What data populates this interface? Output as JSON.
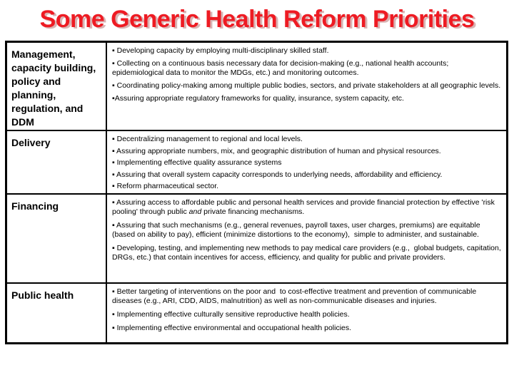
{
  "title": "Some Generic Health Reform Priorities",
  "colors": {
    "title_red": "#ee1b23",
    "title_shadow": "#d9b4b4",
    "border_black": "#000000",
    "background": "#ffffff"
  },
  "table": {
    "rows": [
      {
        "label": "Management, capacity building, policy and planning, regulation, and DDM",
        "bullets": [
          "▪ Developing capacity by employing multi-disciplinary skilled staff.",
          "▪ Collecting on a continuous basis necessary data for decision-making (e.g., national health accounts; epidemiological data to monitor the MDGs, etc.) and monitoring outcomes.",
          "▪ Coordinating policy-making among multiple public bodies, sectors, and private stakeholders at all geographic levels.",
          "▪Assuring appropriate regulatory frameworks for quality, insurance, system capacity, etc."
        ]
      },
      {
        "label": "Delivery",
        "bullets": [
          "▪ Decentralizing management to regional and local levels.",
          "▪ Assuring appropriate numbers, mix, and geographic distribution of human and physical resources.",
          "▪ Implementing effective quality assurance systems",
          "▪ Assuring that overall system capacity corresponds to underlying needs, affordability and efficiency.",
          "▪ Reform pharmaceutical sector."
        ]
      },
      {
        "label": "Financing",
        "bullet1": {
          "pre": "▪ Assuring access to affordable public and personal health services and provide financial protection by effective 'risk pooling' through public ",
          "italic": "and",
          "post": " private financing mechanisms."
        },
        "bullets_rest": [
          "▪ Assuring that such mechanisms (e.g., general revenues, payroll taxes, user charges, premiums) are equitable (based on ability to pay), efficient (minimize distortions to the economy),  simple to administer, and sustainable.",
          "▪ Developing, testing, and implementing new methods to pay medical care providers (e.g.,  global budgets, capitation, DRGs, etc.) that contain incentives for access, efficiency, and quality for public and private providers."
        ]
      },
      {
        "label": "Public health",
        "bullets": [
          "▪ Better targeting of interventions on the poor and  to cost-effective treatment and prevention of communicable diseases (e.g., ARI, CDD, AIDS, malnutrition) as well as non-communicable diseases and injuries.",
          "▪ Implementing effective culturally sensitive reproductive health policies.",
          "▪ Implementing effective environmental and occupational health policies."
        ]
      }
    ]
  }
}
